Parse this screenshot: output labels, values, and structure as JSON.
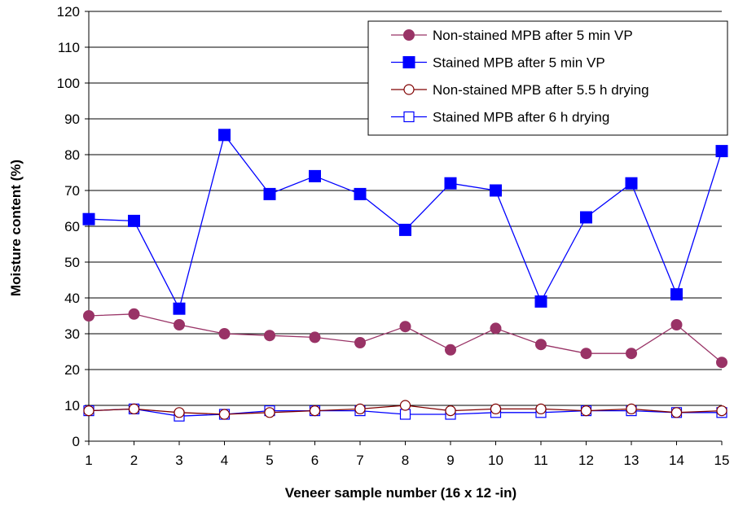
{
  "chart_data": {
    "type": "line",
    "title": "",
    "xlabel": "Veneer sample number (16 x 12 -in)",
    "ylabel": "Moisture content (%)",
    "x": [
      1,
      2,
      3,
      4,
      5,
      6,
      7,
      8,
      9,
      10,
      11,
      12,
      13,
      14,
      15
    ],
    "x_tick_labels": [
      "1",
      "2",
      "3",
      "4",
      "5",
      "6",
      "7",
      "8",
      "9",
      "10",
      "11",
      "12",
      "13",
      "14",
      "15"
    ],
    "ylim": [
      0,
      120
    ],
    "y_ticks": [
      0,
      10,
      20,
      30,
      40,
      50,
      60,
      70,
      80,
      90,
      100,
      110,
      120
    ],
    "y_tick_labels": [
      "0",
      "10",
      "20",
      "30",
      "40",
      "50",
      "60",
      "70",
      "80",
      "90",
      "100",
      "110",
      "120"
    ],
    "grid": "horizontal",
    "legend_position": "top-right",
    "series": [
      {
        "name": "Non-stained MPB after 5 min VP",
        "color": "#993366",
        "marker": "filled-circle",
        "values": [
          35,
          35.5,
          32.5,
          30,
          29.5,
          29,
          27.5,
          32,
          25.5,
          31.5,
          27,
          24.5,
          24.5,
          32.5,
          22
        ]
      },
      {
        "name": "Stained MPB after 5 min VP",
        "color": "#0000FF",
        "marker": "filled-square",
        "values": [
          62,
          61.5,
          37,
          85.5,
          69,
          74,
          69,
          59,
          72,
          70,
          39,
          62.5,
          72,
          41,
          81
        ]
      },
      {
        "name": "Non-stained MPB after 5.5 h drying",
        "color": "#800000",
        "marker": "open-circle",
        "values": [
          8.5,
          9,
          8,
          7.5,
          8,
          8.5,
          9,
          10,
          8.5,
          9,
          9,
          8.5,
          9,
          8,
          8.5
        ]
      },
      {
        "name": "Stained MPB after 6 h drying",
        "color": "#0000FF",
        "marker": "open-square",
        "values": [
          8.5,
          9,
          7,
          7.5,
          8.5,
          8.5,
          8.5,
          7.5,
          7.5,
          8,
          8,
          8.5,
          8.5,
          8,
          8
        ]
      }
    ]
  }
}
